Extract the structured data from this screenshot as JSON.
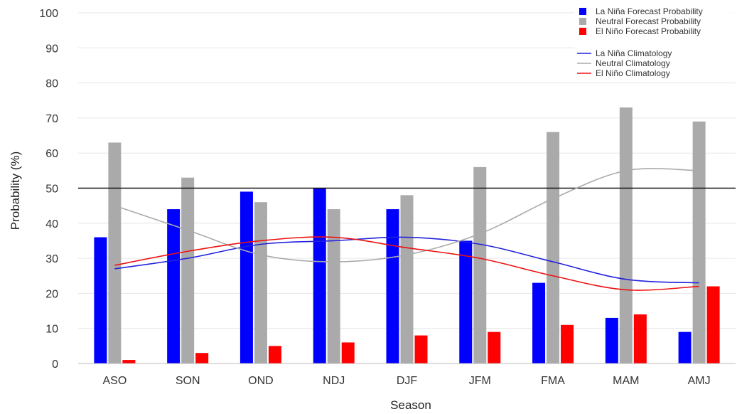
{
  "chart_data": {
    "type": "bar",
    "xlabel": "Season",
    "ylabel": "Probability (%)",
    "ylim": [
      0,
      100
    ],
    "yticks": [
      "0",
      "10",
      "20",
      "30",
      "40",
      "50",
      "60",
      "70",
      "80",
      "90",
      "100"
    ],
    "categories": [
      "ASO",
      "SON",
      "OND",
      "NDJ",
      "DJF",
      "JFM",
      "FMA",
      "MAM",
      "AMJ"
    ],
    "reference_line": 50,
    "grid": true,
    "legend_position": "top-right",
    "series": [
      {
        "name": "La Niña Forecast Probability",
        "kind": "bar",
        "color": "#0000ff",
        "values": [
          36,
          44,
          49,
          50,
          44,
          35,
          23,
          13,
          9
        ]
      },
      {
        "name": "Neutral Forecast Probability",
        "kind": "bar",
        "color": "#aaaaaa",
        "values": [
          63,
          53,
          46,
          44,
          48,
          56,
          66,
          73,
          69
        ]
      },
      {
        "name": "El Niño Forecast Probability",
        "kind": "bar",
        "color": "#ff0000",
        "values": [
          1,
          3,
          5,
          6,
          8,
          9,
          11,
          14,
          22
        ]
      }
    ],
    "lines": [
      {
        "name": "La Niña Climatology",
        "kind": "line",
        "color": "#2222dd",
        "values": [
          27,
          30,
          34,
          35,
          36,
          34,
          29,
          24,
          23
        ]
      },
      {
        "name": "Neutral Climatology",
        "kind": "line",
        "color": "#aaaaaa",
        "values": [
          45,
          38,
          31,
          29,
          31,
          37,
          47,
          55,
          55
        ]
      },
      {
        "name": "El Niño Climatology",
        "kind": "line",
        "color": "#ee1111",
        "values": [
          28,
          32,
          35,
          36,
          33,
          30,
          25,
          21,
          22
        ]
      }
    ]
  }
}
